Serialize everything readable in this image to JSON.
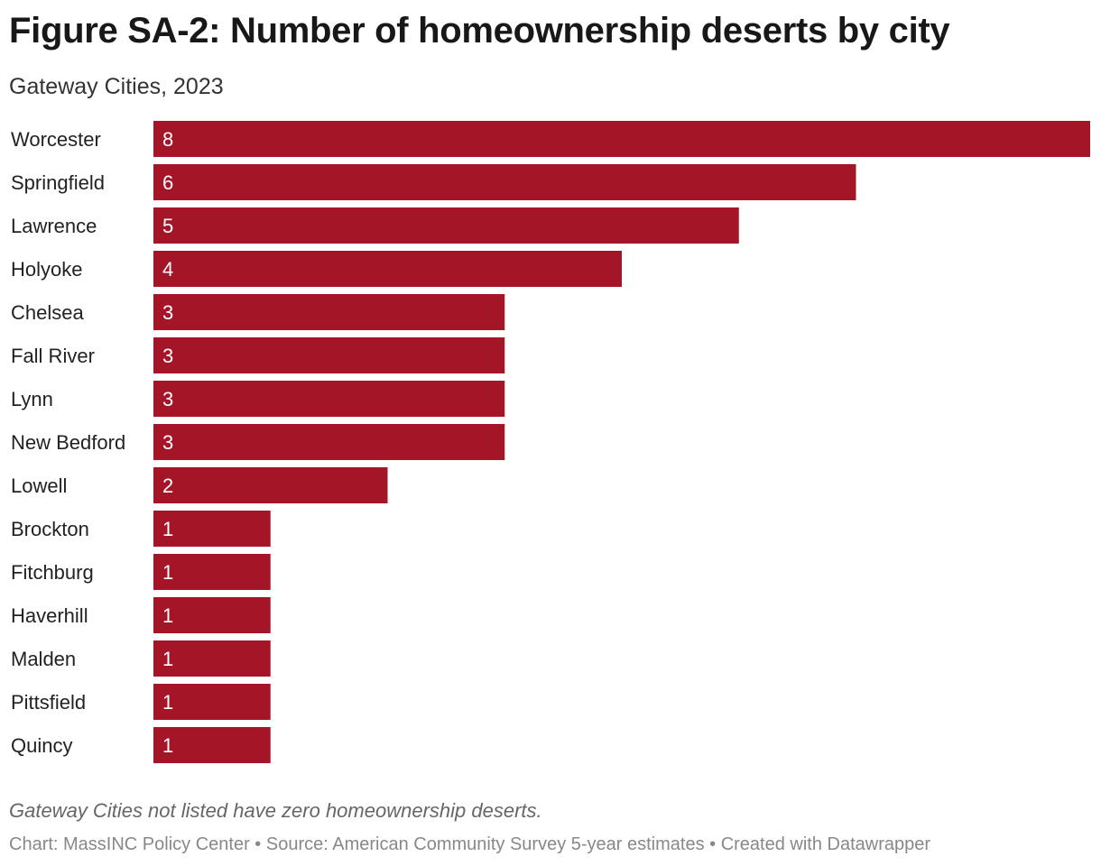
{
  "chart_data": {
    "type": "bar",
    "orientation": "horizontal",
    "title": "Figure SA-2: Number of homeownership deserts by city",
    "subtitle": "Gateway Cities, 2023",
    "categories": [
      "Worcester",
      "Springfield",
      "Lawrence",
      "Holyoke",
      "Chelsea",
      "Fall River",
      "Lynn",
      "New Bedford",
      "Lowell",
      "Brockton",
      "Fitchburg",
      "Haverhill",
      "Malden",
      "Pittsfield",
      "Quincy"
    ],
    "values": [
      8,
      6,
      5,
      4,
      3,
      3,
      3,
      3,
      2,
      1,
      1,
      1,
      1,
      1,
      1
    ],
    "xlim": [
      0,
      8
    ],
    "grid": false,
    "bar_color": "#a51528",
    "note": "Gateway Cities not listed have zero homeownership deserts.",
    "credit": "Chart: MassINC Policy Center • Source: American Community Survey 5-year estimates • Created with Datawrapper"
  }
}
